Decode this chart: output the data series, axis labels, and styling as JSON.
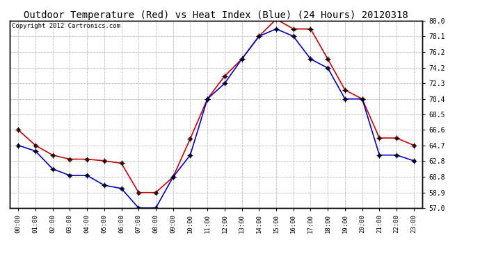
{
  "title": "Outdoor Temperature (Red) vs Heat Index (Blue) (24 Hours) 20120318",
  "copyright": "Copyright 2012 Cartronics.com",
  "hours": [
    "00:00",
    "01:00",
    "02:00",
    "03:00",
    "04:00",
    "05:00",
    "06:00",
    "07:00",
    "08:00",
    "09:00",
    "10:00",
    "11:00",
    "12:00",
    "13:00",
    "14:00",
    "15:00",
    "16:00",
    "17:00",
    "18:00",
    "19:00",
    "20:00",
    "21:00",
    "22:00",
    "23:00"
  ],
  "temp_red": [
    66.6,
    64.7,
    63.5,
    63.0,
    63.0,
    62.8,
    62.5,
    58.9,
    58.9,
    60.8,
    65.5,
    70.4,
    73.2,
    75.3,
    78.1,
    80.2,
    79.0,
    79.0,
    75.3,
    71.5,
    70.4,
    65.6,
    65.6,
    64.7
  ],
  "heat_blue": [
    64.7,
    64.0,
    61.8,
    61.0,
    61.0,
    59.8,
    59.4,
    57.0,
    57.0,
    60.8,
    63.5,
    70.4,
    72.3,
    75.3,
    78.1,
    79.0,
    78.1,
    75.3,
    74.2,
    70.4,
    70.4,
    63.5,
    63.5,
    62.8
  ],
  "red_color": "#cc0000",
  "blue_color": "#0000cc",
  "ylim_min": 57.0,
  "ylim_max": 80.0,
  "ytick_values": [
    57.0,
    58.9,
    60.8,
    62.8,
    64.7,
    66.6,
    68.5,
    70.4,
    72.3,
    74.2,
    76.2,
    78.1,
    80.0
  ],
  "background_color": "#ffffff",
  "grid_color": "#bbbbbb",
  "title_fontsize": 10,
  "copyright_fontsize": 6.5
}
